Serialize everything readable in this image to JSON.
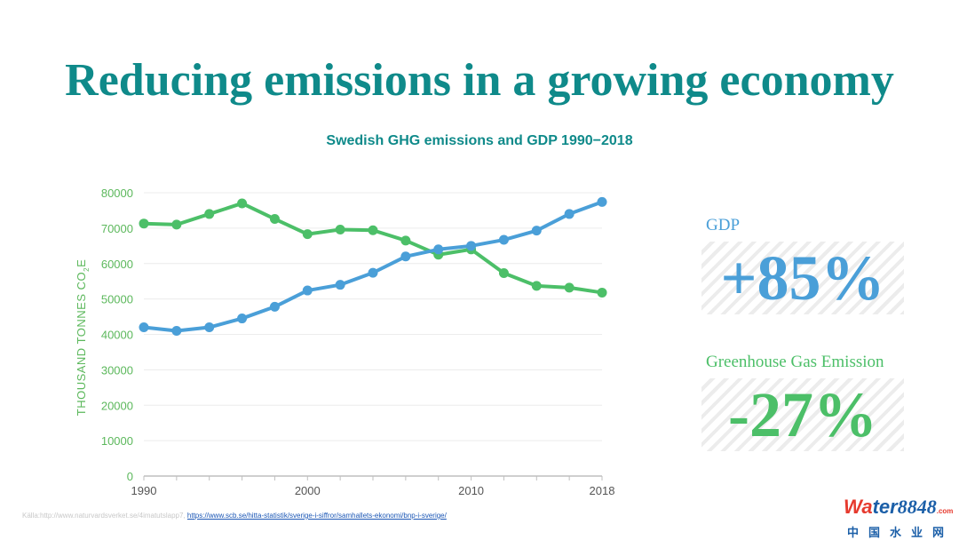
{
  "slide": {
    "title": "Reducing emissions in a growing economy"
  },
  "stats": {
    "gdp": {
      "label": "GDP",
      "value": "+85%",
      "color": "#4a9fd8"
    },
    "ghg": {
      "label": "Greenhouse Gas Emission",
      "value": "-27%",
      "color": "#4cbf68"
    }
  },
  "source": {
    "prefix": "Källa:http://www.naturvardsverket.se/4imatutslapp7,",
    "link": "https://www.scb.se/hitta-statistik/sverige-i-siffror/samhallets-ekonomi/bnp-i-sverige/"
  },
  "logo": {
    "w": "Wa",
    "rest": "ter",
    "number": "8848",
    "domain": ".com",
    "subtitle": "中国水业网"
  },
  "chart_data": {
    "type": "line",
    "title": "Swedish GHG emissions  and GDP 1990−2018",
    "ylabel_main": "THOUSAND TONNES CO",
    "ylabel_sub": "2",
    "ylabel_end": "E",
    "xlabel": "",
    "xlim": [
      1990,
      2018
    ],
    "ylim": [
      0,
      80000
    ],
    "x_ticks": [
      1990,
      2000,
      2010,
      2018
    ],
    "y_ticks": [
      0,
      10000,
      20000,
      30000,
      40000,
      50000,
      60000,
      70000,
      80000
    ],
    "grid": true,
    "colors": {
      "ghg": "#4cbf68",
      "gdp": "#4a9fd8",
      "axis": "#bfbfbf",
      "tick_text": "#5cb85c",
      "x_tick_text": "#555555"
    },
    "x": [
      1990,
      1992,
      1994,
      1996,
      1998,
      2000,
      2002,
      2004,
      2006,
      2008,
      2010,
      2012,
      2014,
      2016,
      2018
    ],
    "series": [
      {
        "key": "ghg",
        "values": [
          71300,
          71000,
          74000,
          77000,
          72600,
          68300,
          69600,
          69400,
          66500,
          62500,
          64000,
          57300,
          53700,
          53200,
          51800
        ]
      },
      {
        "key": "gdp",
        "values": [
          42000,
          41000,
          42000,
          44500,
          47800,
          52400,
          54000,
          57400,
          62000,
          64000,
          65000,
          66700,
          69300,
          74000,
          77400
        ]
      }
    ]
  }
}
